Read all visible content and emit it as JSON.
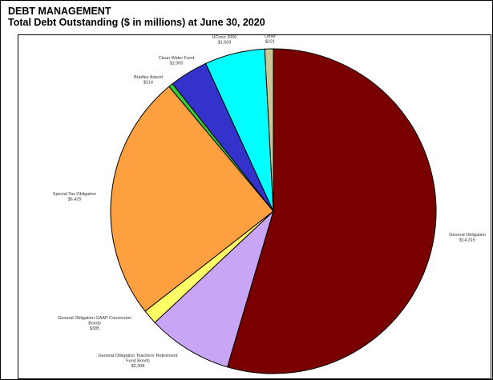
{
  "header": {
    "title": "DEBT MANAGEMENT",
    "subtitle": "Total Debt Outstanding ($ in millions) at June 30, 2020"
  },
  "chart_data": {
    "type": "pie",
    "title": "Total Debt Outstanding ($ in millions) at June 30, 2020",
    "slices": [
      {
        "name": "General Obligation",
        "value": 14315,
        "value_label": "$14,315",
        "color": "#7a0000"
      },
      {
        "name": "General Obligation Teachers' Retirement Fund Bonds",
        "value": 2208,
        "value_label": "$2,208",
        "color": "#c8a6f5"
      },
      {
        "name": "General Obligation GAAP Conversion Bonds",
        "value": 385,
        "value_label": "$385",
        "color": "#ffff66"
      },
      {
        "name": "Special Tax Obligation",
        "value": 6425,
        "value_label": "$6,425",
        "color": "#ffa040"
      },
      {
        "name": "Bradley Airport",
        "value": 114,
        "value_label": "$114",
        "color": "#33cc33"
      },
      {
        "name": "Clean Water Fund",
        "value": 1000,
        "value_label": "$1,000",
        "color": "#3333cc"
      },
      {
        "name": "UConn 2000",
        "value": 1569,
        "value_label": "$1,569",
        "color": "#00ffff"
      },
      {
        "name": "Other",
        "value": 221,
        "value_label": "$221",
        "color": "#c8c896"
      }
    ],
    "start": "12 o'clock",
    "direction": "clockwise",
    "legend": "none"
  }
}
